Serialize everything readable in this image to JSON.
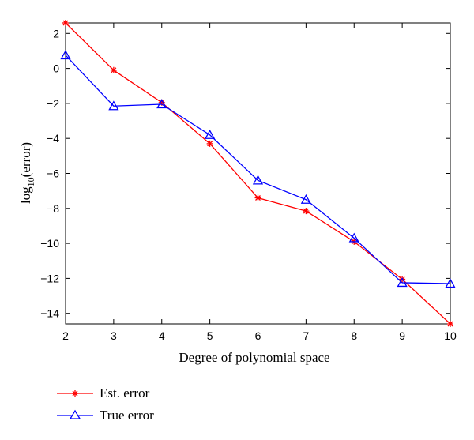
{
  "chart_data": {
    "type": "line",
    "xlabel": "Degree of polynomial space",
    "ylabel_main": "log",
    "ylabel_sub": "10",
    "ylabel_rest": "(error)",
    "xlim": [
      2,
      10
    ],
    "ylim": [
      -14.6,
      2.6
    ],
    "xticks": [
      2,
      3,
      4,
      5,
      6,
      7,
      8,
      9,
      10
    ],
    "yticks": [
      2,
      0,
      -2,
      -4,
      -6,
      -8,
      -10,
      -12,
      -14
    ],
    "ytick_labels": [
      "2",
      "0",
      "−2",
      "−4",
      "−6",
      "−8",
      "−10",
      "−12",
      "−14"
    ],
    "grid": false,
    "legend_position": "below-left",
    "series": [
      {
        "name": "Est. error",
        "color": "#ff0000",
        "marker": "asterisk",
        "x": [
          2,
          3,
          4,
          5,
          6,
          7,
          8,
          9,
          10
        ],
        "y": [
          2.6,
          -0.1,
          -1.95,
          -4.3,
          -7.4,
          -8.15,
          -9.9,
          -12.05,
          -14.6
        ]
      },
      {
        "name": "True error",
        "color": "#0000ff",
        "marker": "triangle",
        "x": [
          2,
          3,
          4,
          5,
          6,
          7,
          8,
          9,
          10
        ],
        "y": [
          0.75,
          -2.15,
          -2.05,
          -3.8,
          -6.4,
          -7.5,
          -9.7,
          -12.25,
          -12.3
        ]
      }
    ]
  }
}
